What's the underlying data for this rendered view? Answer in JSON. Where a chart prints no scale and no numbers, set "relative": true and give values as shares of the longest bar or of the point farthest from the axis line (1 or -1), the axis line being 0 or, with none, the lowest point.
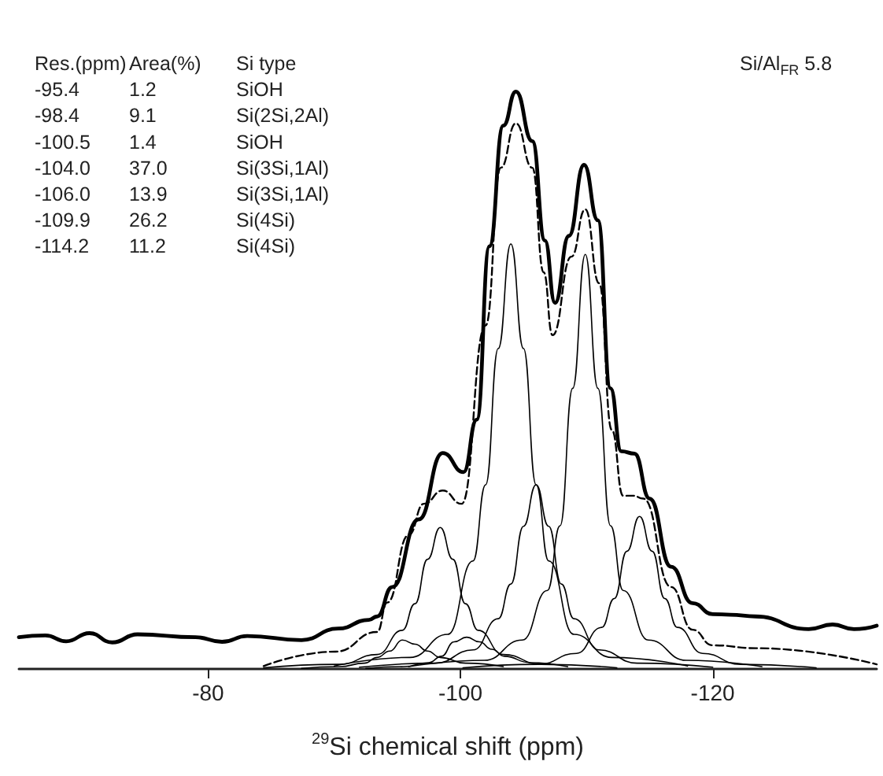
{
  "chart_data": {
    "type": "line",
    "relative": true,
    "xlabel": "$^{29}$Si chemical shift (ppm)",
    "xlim": [
      -65,
      -133
    ],
    "xticks": [
      -80,
      -100,
      -120
    ],
    "grid": false,
    "marker": "none",
    "line_style": "solid",
    "annotations": [
      "Res.(ppm)",
      "Area(%)",
      "Si type",
      "-95.4",
      "1.2",
      "SiOH",
      "-98.4",
      "9.1",
      "Si(2Si,2Al)",
      "-100.5",
      "1.4",
      "SiOH",
      "-104.0",
      "37.0",
      "Si(3Si,1Al)",
      "-106.0",
      "13.9",
      "Si(3Si,1Al)",
      "-109.9",
      "26.2",
      "Si(4Si)",
      "-114.2",
      "11.2",
      "Si(4Si)",
      "Si/Al$_{FR}$ 5.8"
    ],
    "series": [
      {
        "color": "#000000",
        "x": [
          -65,
          -67.1,
          -68.75,
          -70.6,
          -72.4,
          -74.4,
          -79,
          -81.1,
          -83.1,
          -87.4,
          -90.3,
          -92.75,
          -93.4,
          -94.6,
          -96.7,
          -98.6,
          -100.25,
          -101.3,
          -102.3,
          -103.4,
          -104.4,
          -105.7,
          -106.7,
          -107.5,
          -108.6,
          -109.8,
          -110.9,
          -111.9,
          -112.75,
          -113.8,
          -115.0,
          -116.7,
          -118.4,
          -120,
          -121.4,
          -123.4,
          -127.6,
          -129.5,
          -131.2,
          -133
        ],
        "values": [
          0.055,
          0.058,
          0.048,
          0.062,
          0.046,
          0.06,
          0.055,
          0.047,
          0.057,
          0.05,
          0.07,
          0.085,
          0.091,
          0.142,
          0.259,
          0.374,
          0.341,
          0.432,
          0.732,
          0.941,
          1,
          0.914,
          0.742,
          0.634,
          0.75,
          0.873,
          0.777,
          0.486,
          0.377,
          0.373,
          0.295,
          0.177,
          0.114,
          0.095,
          0.094,
          0.091,
          0.069,
          0.077,
          0.069,
          0.075
        ]
      },
      {
        "color": "#000000",
        "line_style": "dashed",
        "x": [
          -84.4,
          -90.1,
          -93.4,
          -94.2,
          -95.9,
          -97.1,
          -98.6,
          -100.1,
          -102,
          -103.2,
          -104.4,
          -105.7,
          -106.6,
          -107.3,
          -108.8,
          -109.9,
          -111,
          -112,
          -112.9,
          -113.7,
          -114.5,
          -116.7,
          -118.4,
          -120,
          -123.4,
          -133
        ],
        "values": [
          0.005,
          0.03,
          0.064,
          0.115,
          0.232,
          0.286,
          0.309,
          0.286,
          0.595,
          0.868,
          0.945,
          0.868,
          0.687,
          0.578,
          0.714,
          0.796,
          0.668,
          0.414,
          0.3,
          0.3,
          0.295,
          0.142,
          0.068,
          0.041,
          0.036,
          0.008
        ]
      },
      {
        "color": "#000000",
        "x": [
          -87.4,
          -90.4,
          -92.4,
          -93.4,
          -94.4,
          -95.4,
          -96.4,
          -97.4,
          -98.4,
          -100.4,
          -103.4
        ],
        "values": [
          0.001,
          0.004,
          0.01,
          0.02,
          0.031,
          0.05,
          0.043,
          0.031,
          0.02,
          0.01,
          0.004
        ]
      },
      {
        "color": "#000000",
        "x": [
          -84.4,
          -90.4,
          -93.4,
          -95.4,
          -96.4,
          -97.4,
          -98.4,
          -99.4,
          -100.4,
          -101.4,
          -103.4,
          -106.4,
          -112.4
        ],
        "values": [
          0.002,
          0.008,
          0.025,
          0.067,
          0.113,
          0.19,
          0.245,
          0.19,
          0.113,
          0.067,
          0.025,
          0.008,
          0.002
        ]
      },
      {
        "color": "#000000",
        "x": [
          -92.5,
          -95.5,
          -97.5,
          -98.5,
          -99.5,
          -100.5,
          -101.5,
          -102.5,
          -103.5,
          -105.5,
          -108.5
        ],
        "values": [
          0.001,
          0.004,
          0.011,
          0.022,
          0.047,
          0.055,
          0.047,
          0.034,
          0.022,
          0.011,
          0.004
        ]
      },
      {
        "color": "#000000",
        "x": [
          -90,
          -96,
          -99,
          -101,
          -102,
          -103,
          -104,
          -105,
          -106,
          -107,
          -109,
          -112,
          -118
        ],
        "values": [
          0.005,
          0.02,
          0.06,
          0.187,
          0.319,
          0.555,
          0.736,
          0.555,
          0.319,
          0.187,
          0.06,
          0.02,
          0.005
        ]
      },
      {
        "color": "#000000",
        "x": [
          -92,
          -98,
          -101,
          -103,
          -104,
          -105,
          -106,
          -107,
          -108,
          -109,
          -111,
          -114,
          -120
        ],
        "values": [
          0.003,
          0.01,
          0.033,
          0.087,
          0.147,
          0.247,
          0.319,
          0.247,
          0.147,
          0.087,
          0.033,
          0.01,
          0.003
        ]
      },
      {
        "color": "#000000",
        "x": [
          -95.9,
          -101.9,
          -104.9,
          -106.9,
          -107.9,
          -108.9,
          -109.9,
          -110.9,
          -111.9,
          -112.9,
          -114.9,
          -117.9,
          -123.9
        ],
        "values": [
          0.004,
          0.015,
          0.05,
          0.136,
          0.248,
          0.486,
          0.718,
          0.486,
          0.248,
          0.136,
          0.05,
          0.015,
          0.004
        ]
      },
      {
        "color": "#000000",
        "x": [
          -100.2,
          -106.2,
          -109.2,
          -111.2,
          -112.2,
          -113.2,
          -114.2,
          -115.2,
          -116.2,
          -117.2,
          -119.2,
          -122.2,
          -128.2
        ],
        "values": [
          0.002,
          0.008,
          0.027,
          0.072,
          0.122,
          0.204,
          0.264,
          0.204,
          0.122,
          0.072,
          0.027,
          0.008,
          0.002
        ]
      }
    ]
  }
}
